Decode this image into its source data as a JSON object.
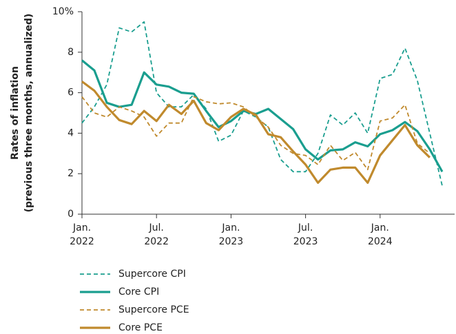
{
  "chart_data": {
    "type": "line",
    "y_label": [
      "Rates of inflation",
      "(previous three months, annualized)"
    ],
    "x": [
      "2022-01",
      "2022-02",
      "2022-03",
      "2022-04",
      "2022-05",
      "2022-06",
      "2022-07",
      "2022-08",
      "2022-09",
      "2022-10",
      "2022-11",
      "2022-12",
      "2023-01",
      "2023-02",
      "2023-03",
      "2023-04",
      "2023-05",
      "2023-06",
      "2023-07",
      "2023-08",
      "2023-09",
      "2023-10",
      "2023-11",
      "2023-12",
      "2024-01",
      "2024-02",
      "2024-03",
      "2024-04",
      "2024-05",
      "2024-06"
    ],
    "xlim": [
      "2022-01",
      "2024-07"
    ],
    "xticks": [
      {
        "value": "2022-01",
        "label": "Jan. 2022"
      },
      {
        "value": "2022-07",
        "label": "Jul. 2022"
      },
      {
        "value": "2023-01",
        "label": "Jan. 2023"
      },
      {
        "value": "2023-07",
        "label": "Jul. 2023"
      },
      {
        "value": "2024-01",
        "label": "Jan. 2024"
      }
    ],
    "ylim": [
      0,
      10
    ],
    "yticks": [
      0,
      2,
      4,
      6,
      8,
      {
        "value": 10,
        "label": "10%"
      }
    ],
    "series": [
      {
        "name": "Supercore CPI",
        "color": "#1a9e8f",
        "dashed": true,
        "values": [
          4.5,
          5.3,
          6.4,
          9.2,
          9.0,
          9.5,
          6.0,
          5.3,
          5.3,
          5.9,
          5.2,
          3.6,
          3.9,
          5.1,
          4.8,
          4.3,
          2.7,
          2.1,
          2.1,
          3.0,
          4.9,
          4.4,
          5.0,
          4.0,
          6.7,
          6.9,
          8.2,
          6.6,
          4.0,
          1.4
        ]
      },
      {
        "name": "Core CPI",
        "color": "#1a9e8f",
        "dashed": false,
        "values": [
          7.6,
          7.1,
          5.5,
          5.3,
          5.4,
          7.0,
          6.4,
          6.3,
          6.0,
          5.95,
          5.1,
          4.3,
          4.6,
          5.1,
          4.95,
          5.2,
          4.7,
          4.2,
          3.2,
          2.7,
          3.15,
          3.2,
          3.55,
          3.35,
          3.95,
          4.15,
          4.55,
          4.1,
          3.2,
          2.1
        ]
      },
      {
        "name": "Supercore PCE",
        "color": "#c08a2d",
        "dashed": true,
        "values": [
          5.8,
          5.0,
          4.8,
          5.3,
          5.1,
          4.8,
          3.85,
          4.5,
          4.5,
          5.8,
          5.55,
          5.45,
          5.5,
          5.3,
          4.8,
          4.3,
          3.4,
          3.0,
          2.9,
          2.45,
          3.4,
          2.65,
          3.05,
          2.2,
          4.6,
          4.75,
          5.4,
          3.5,
          3.0,
          null
        ]
      },
      {
        "name": "Core PCE",
        "color": "#c08a2d",
        "dashed": false,
        "values": [
          6.55,
          6.1,
          5.3,
          4.65,
          4.45,
          5.1,
          4.6,
          5.4,
          4.95,
          5.6,
          4.5,
          4.15,
          4.8,
          5.2,
          4.9,
          3.95,
          3.8,
          3.1,
          2.45,
          1.55,
          2.2,
          2.3,
          2.3,
          1.55,
          2.9,
          3.65,
          4.4,
          3.4,
          2.8,
          null
        ]
      }
    ]
  }
}
